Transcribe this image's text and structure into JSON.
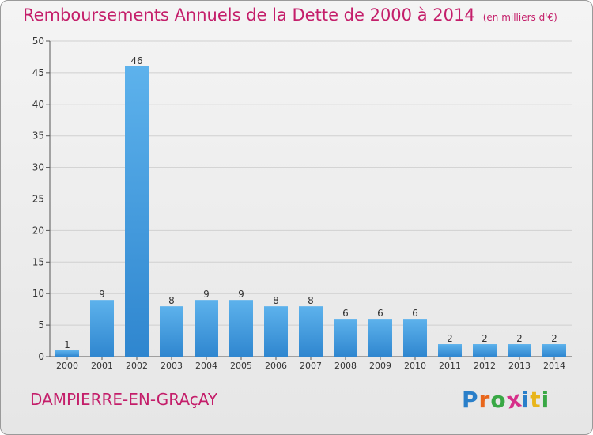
{
  "title": "Remboursements Annuels de la Dette de 2000 à 2014",
  "subtitle": "(en milliers d'€)",
  "commune": "DAMPIERRE-EN-GRAçAY",
  "logo": {
    "text": "Proxiti",
    "letters": [
      {
        "ch": "P",
        "color": "#2a7fc9"
      },
      {
        "ch": "r",
        "color": "#e8661b"
      },
      {
        "ch": "o",
        "color": "#39a845"
      },
      {
        "ch": "x",
        "color": "#d62f8a"
      },
      {
        "ch": "i",
        "color": "#2a7fc9"
      },
      {
        "ch": "t",
        "color": "#e8b51b"
      },
      {
        "ch": "i",
        "color": "#39a845"
      }
    ]
  },
  "colors": {
    "bar_top": "#5db2ec",
    "bar_bottom": "#2f86cf",
    "title": "#c41e6a",
    "axis": "#555555",
    "grid": "#d0d0d0"
  },
  "chart_data": {
    "type": "bar",
    "categories": [
      "2000",
      "2001",
      "2002",
      "2003",
      "2004",
      "2005",
      "2006",
      "2007",
      "2008",
      "2009",
      "2010",
      "2011",
      "2012",
      "2013",
      "2014"
    ],
    "values": [
      1,
      9,
      46,
      8,
      9,
      9,
      8,
      8,
      6,
      6,
      6,
      2,
      2,
      2,
      2
    ],
    "ylim": [
      0,
      50
    ],
    "yticks": [
      0,
      5,
      10,
      15,
      20,
      25,
      30,
      35,
      40,
      45,
      50
    ],
    "grid": true
  }
}
